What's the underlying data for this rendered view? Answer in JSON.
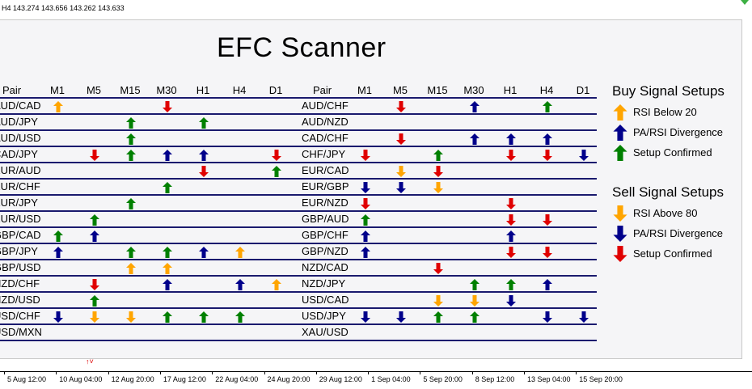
{
  "window": {
    "info": "H4  143.274 143.656 143.262 143.633"
  },
  "panel": {
    "title": "EFC Scanner"
  },
  "colors": {
    "buy": "#008000",
    "rsi_buy": "#ffa500",
    "div": "#00008b",
    "sell": "#e00000",
    "rsi_sell": "#ffa500",
    "line": "#1a1a6e"
  },
  "left_table": {
    "pair_header": "Pair",
    "timeframes": [
      "M1",
      "M5",
      "M15",
      "M30",
      "H1",
      "H4",
      "D1"
    ],
    "rows": [
      {
        "pair": "AUD/CAD",
        "signals": [
          "rsi-up",
          "",
          "",
          "sell",
          "",
          "",
          ""
        ]
      },
      {
        "pair": "AUD/JPY",
        "signals": [
          "",
          "",
          "buy",
          "",
          "buy",
          "",
          ""
        ]
      },
      {
        "pair": "AUD/USD",
        "signals": [
          "",
          "",
          "buy",
          "",
          "",
          "",
          ""
        ]
      },
      {
        "pair": "CAD/JPY",
        "signals": [
          "",
          "sell",
          "buy",
          "div-up",
          "div-up",
          "",
          "sell"
        ]
      },
      {
        "pair": "EUR/AUD",
        "signals": [
          "",
          "",
          "",
          "",
          "sell",
          "",
          "buy"
        ]
      },
      {
        "pair": "EUR/CHF",
        "signals": [
          "",
          "",
          "",
          "buy",
          "",
          "",
          ""
        ]
      },
      {
        "pair": "EUR/JPY",
        "signals": [
          "",
          "",
          "buy",
          "",
          "",
          "",
          ""
        ]
      },
      {
        "pair": "EUR/USD",
        "signals": [
          "",
          "buy",
          "",
          "",
          "",
          "",
          ""
        ]
      },
      {
        "pair": "GBP/CAD",
        "signals": [
          "buy",
          "div-up",
          "",
          "",
          "",
          "",
          ""
        ]
      },
      {
        "pair": "GBP/JPY",
        "signals": [
          "div-up",
          "",
          "buy",
          "buy",
          "div-up",
          "rsi-up",
          ""
        ]
      },
      {
        "pair": "GBP/USD",
        "signals": [
          "",
          "",
          "rsi-up",
          "rsi-up",
          "",
          "",
          ""
        ]
      },
      {
        "pair": "NZD/CHF",
        "signals": [
          "",
          "sell",
          "",
          "div-up",
          "",
          "div-up",
          "rsi-up"
        ]
      },
      {
        "pair": "NZD/USD",
        "signals": [
          "",
          "buy",
          "",
          "",
          "",
          "",
          ""
        ]
      },
      {
        "pair": "USD/CHF",
        "signals": [
          "div-down",
          "rsi-down",
          "rsi-down",
          "buy",
          "buy",
          "buy",
          ""
        ]
      },
      {
        "pair": "USD/MXN",
        "signals": [
          "",
          "",
          "",
          "",
          "",
          "",
          ""
        ]
      }
    ]
  },
  "right_table": {
    "pair_header": "Pair",
    "timeframes": [
      "M1",
      "M5",
      "M15",
      "M30",
      "H1",
      "H4",
      "D1"
    ],
    "rows": [
      {
        "pair": "AUD/CHF",
        "signals": [
          "",
          "sell",
          "",
          "div-up",
          "",
          "buy",
          ""
        ]
      },
      {
        "pair": "AUD/NZD",
        "signals": [
          "",
          "",
          "",
          "",
          "",
          "",
          ""
        ]
      },
      {
        "pair": "CAD/CHF",
        "signals": [
          "",
          "sell",
          "",
          "div-up",
          "div-up",
          "div-up",
          ""
        ]
      },
      {
        "pair": "CHF/JPY",
        "signals": [
          "sell",
          "",
          "buy",
          "",
          "sell",
          "sell",
          "div-down"
        ]
      },
      {
        "pair": "EUR/CAD",
        "signals": [
          "",
          "rsi-down",
          "sell",
          "",
          "",
          "",
          ""
        ]
      },
      {
        "pair": "EUR/GBP",
        "signals": [
          "div-down",
          "div-down",
          "rsi-down",
          "",
          "",
          "",
          ""
        ]
      },
      {
        "pair": "EUR/NZD",
        "signals": [
          "sell",
          "",
          "",
          "",
          "sell",
          "",
          ""
        ]
      },
      {
        "pair": "GBP/AUD",
        "signals": [
          "buy",
          "",
          "",
          "",
          "sell",
          "sell",
          ""
        ]
      },
      {
        "pair": "GBP/CHF",
        "signals": [
          "div-up",
          "",
          "",
          "",
          "div-up",
          "",
          ""
        ]
      },
      {
        "pair": "GBP/NZD",
        "signals": [
          "div-up",
          "",
          "",
          "",
          "sell",
          "sell",
          ""
        ]
      },
      {
        "pair": "NZD/CAD",
        "signals": [
          "",
          "",
          "sell",
          "",
          "",
          "",
          ""
        ]
      },
      {
        "pair": "NZD/JPY",
        "signals": [
          "",
          "",
          "",
          "buy",
          "buy",
          "div-up",
          ""
        ]
      },
      {
        "pair": "USD/CAD",
        "signals": [
          "",
          "",
          "rsi-down",
          "rsi-down",
          "div-down",
          "",
          ""
        ]
      },
      {
        "pair": "USD/JPY",
        "signals": [
          "div-down",
          "div-down",
          "buy",
          "buy",
          "",
          "div-down",
          "div-down"
        ]
      },
      {
        "pair": "XAU/USD",
        "signals": [
          "",
          "",
          "",
          "",
          "",
          "",
          ""
        ]
      }
    ]
  },
  "legend": {
    "buy_title": "Buy Signal Setups",
    "buy_items": [
      {
        "label": "RSI Below 20",
        "icon": "rsi-up"
      },
      {
        "label": "PA/RSI Divergence",
        "icon": "div-up"
      },
      {
        "label": "Setup Confirmed",
        "icon": "buy"
      }
    ],
    "sell_title": "Sell Signal Setups",
    "sell_items": [
      {
        "label": "RSI Above 80",
        "icon": "rsi-down"
      },
      {
        "label": "PA/RSI Divergence",
        "icon": "div-down"
      },
      {
        "label": "Setup Confirmed",
        "icon": "sell"
      }
    ]
  },
  "xaxis": {
    "labels": [
      "5 Aug 12:00",
      "10 Aug 04:00",
      "12 Aug 20:00",
      "17 Aug 12:00",
      "22 Aug 04:00",
      "24 Aug 20:00",
      "29 Aug 12:00",
      "1 Sep 04:00",
      "5 Sep 20:00",
      "8 Sep 12:00",
      "13 Sep 04:00",
      "15 Sep 20:00"
    ]
  }
}
